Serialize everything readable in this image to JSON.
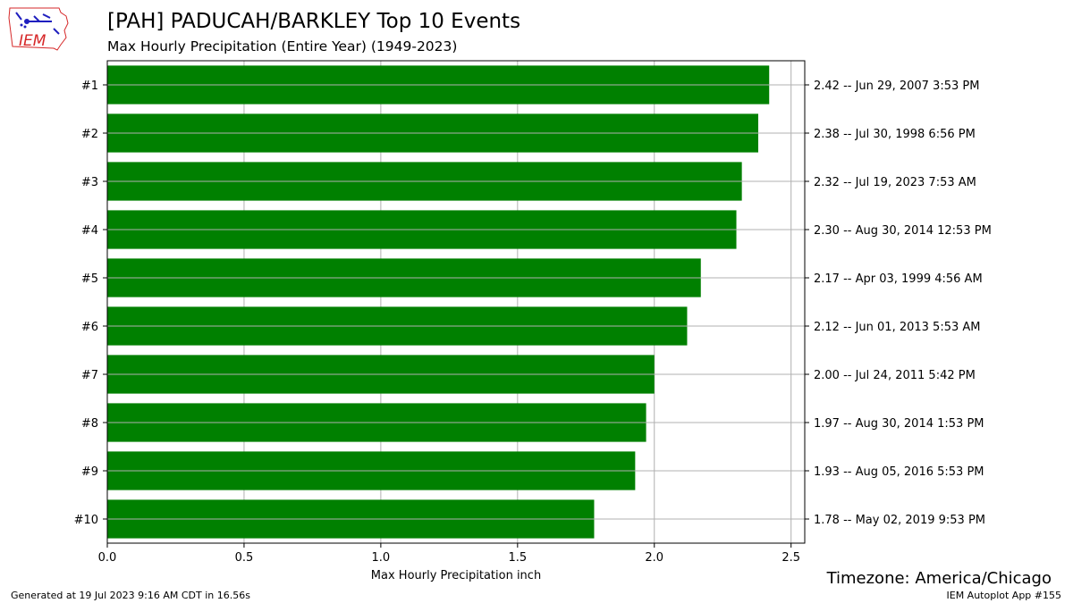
{
  "header": {
    "title": "[PAH] PADUCAH/BARKLEY Top 10 Events",
    "subtitle": "Max Hourly Precipitation  (Entire Year) (1949-2023)",
    "logo_text": "IEM"
  },
  "footer": {
    "timezone": "Timezone: America/Chicago",
    "generated": "Generated at 19 Jul 2023 9:16 AM CDT in 16.56s",
    "app": "IEM Autoplot App #155"
  },
  "colors": {
    "bar": "#008000",
    "grid": "#b0b0b0",
    "logo_red": "#d62728",
    "logo_blue": "#1f1fbf"
  },
  "chart_data": {
    "type": "bar",
    "orientation": "horizontal",
    "xlabel": "Max Hourly Precipitation inch",
    "xlim": [
      0,
      2.55
    ],
    "xticks": [
      0.0,
      0.5,
      1.0,
      1.5,
      2.0,
      2.5
    ],
    "xtick_labels": [
      "0.0",
      "0.5",
      "1.0",
      "1.5",
      "2.0",
      "2.5"
    ],
    "grid": true,
    "categories": [
      "#1",
      "#2",
      "#3",
      "#4",
      "#5",
      "#6",
      "#7",
      "#8",
      "#9",
      "#10"
    ],
    "values": [
      2.42,
      2.38,
      2.32,
      2.3,
      2.17,
      2.12,
      2.0,
      1.97,
      1.93,
      1.78
    ],
    "right_labels": [
      "2.42 -- Jun 29, 2007 3:53 PM",
      "2.38 -- Jul 30, 1998 6:56 PM",
      "2.32 -- Jul 19, 2023 7:53 AM",
      "2.30 -- Aug 30, 2014 12:53 PM",
      "2.17 -- Apr 03, 1999 4:56 AM",
      "2.12 -- Jun 01, 2013 5:53 AM",
      "2.00 -- Jul 24, 2011 5:42 PM",
      "1.97 -- Aug 30, 2014 1:53 PM",
      "1.93 -- Aug 05, 2016 5:53 PM",
      "1.78 -- May 02, 2019 9:53 PM"
    ]
  }
}
